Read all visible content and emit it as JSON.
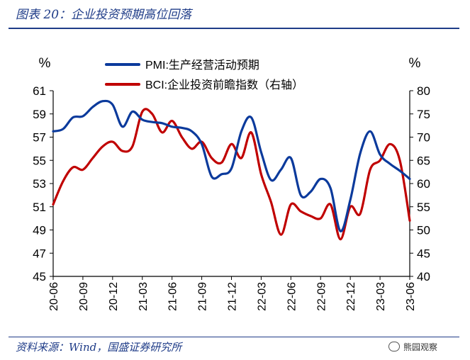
{
  "figure_title": "图表 20：企业投资预期高位回落",
  "source_note": "资料来源：Wind，国盛证券研究所",
  "watermark": "熊园观察",
  "chart_data": {
    "type": "line",
    "left_axis_unit": "%",
    "right_axis_unit": "%",
    "y_left": {
      "min": 45,
      "max": 61,
      "ticks": [
        45,
        47,
        49,
        51,
        53,
        55,
        57,
        59,
        61
      ]
    },
    "y_right": {
      "min": 40,
      "max": 80,
      "ticks": [
        40,
        45,
        50,
        55,
        60,
        65,
        70,
        75,
        80
      ]
    },
    "x_tick_labels": [
      "20-06",
      "20-09",
      "20-12",
      "21-03",
      "21-06",
      "21-09",
      "21-12",
      "22-03",
      "22-06",
      "22-09",
      "22-12",
      "23-03",
      "23-06"
    ],
    "x_months": [
      "20-06",
      "20-07",
      "20-08",
      "20-09",
      "20-10",
      "20-11",
      "20-12",
      "21-01",
      "21-02",
      "21-03",
      "21-04",
      "21-05",
      "21-06",
      "21-07",
      "21-08",
      "21-09",
      "21-10",
      "21-11",
      "21-12",
      "22-01",
      "22-02",
      "22-03",
      "22-04",
      "22-05",
      "22-06",
      "22-07",
      "22-08",
      "22-09",
      "22-10",
      "22-11",
      "22-12",
      "23-01",
      "23-02",
      "23-03",
      "23-04",
      "23-05",
      "23-06"
    ],
    "series": [
      {
        "name": "PMI:生产经营活动预期",
        "axis": "left",
        "color": "#0b3a9c",
        "values": [
          57.5,
          57.7,
          58.7,
          58.8,
          59.6,
          60.1,
          59.8,
          57.9,
          59.2,
          58.5,
          58.3,
          58.2,
          57.9,
          57.8,
          57.5,
          56.4,
          53.6,
          53.8,
          54.3,
          57.5,
          58.7,
          55.7,
          53.3,
          54.2,
          55.2,
          52.0,
          52.3,
          53.4,
          52.6,
          48.9,
          51.6,
          55.6,
          57.5,
          55.5,
          54.7,
          54.1,
          53.4
        ]
      },
      {
        "name": "BCI:企业投资前瞻指数（右轴）",
        "axis": "right",
        "color": "#c00000",
        "values": [
          55.5,
          60.5,
          63.5,
          63.0,
          65.5,
          68.0,
          69.0,
          67.0,
          68.0,
          75.5,
          75.0,
          71.0,
          73.5,
          70.0,
          67.5,
          69.0,
          65.5,
          64.5,
          68.5,
          65.5,
          71.0,
          62.0,
          56.0,
          49.0,
          55.5,
          54.0,
          53.0,
          52.5,
          55.5,
          48.0,
          55.0,
          53.5,
          63.0,
          65.0,
          68.5,
          65.0,
          52.0
        ]
      }
    ]
  }
}
